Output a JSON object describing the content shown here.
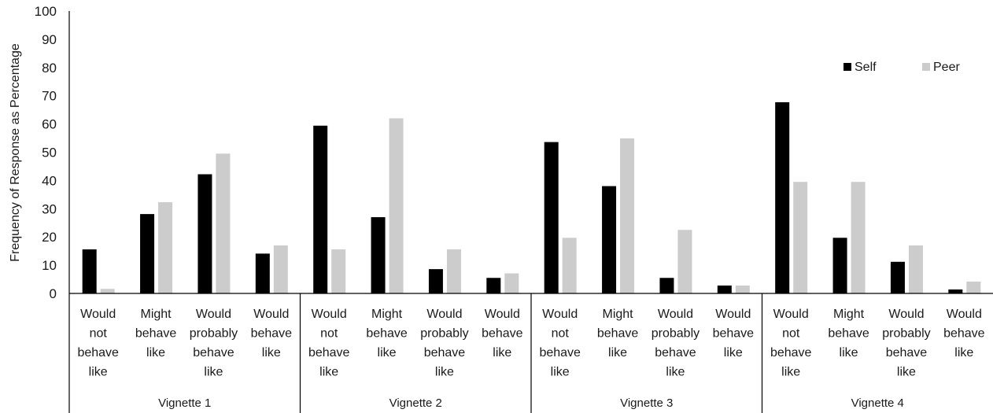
{
  "colors": {
    "self": "#000000",
    "peer": "#cccccc",
    "axis": "#000000",
    "text": "#1a1a1a"
  },
  "chart_data": {
    "type": "bar",
    "ylabel": "Frequency of Response as Percentage",
    "xlabel": "",
    "ylim": [
      0,
      100
    ],
    "yticks": [
      0,
      10,
      20,
      30,
      40,
      50,
      60,
      70,
      80,
      90,
      100
    ],
    "grid": false,
    "legend_position": "top-right",
    "groups": [
      {
        "name": "Vignette 1",
        "categories": [
          [
            "Would",
            "not",
            "behave",
            "like"
          ],
          [
            "Might",
            "behave",
            "like"
          ],
          [
            "Would",
            "probably",
            "behave",
            "like"
          ],
          [
            "Would",
            "behave",
            "like"
          ]
        ]
      },
      {
        "name": "Vignette 2",
        "categories": [
          [
            "Would",
            "not",
            "behave",
            "like"
          ],
          [
            "Might",
            "behave",
            "like"
          ],
          [
            "Would",
            "probably",
            "behave",
            "like"
          ],
          [
            "Would",
            "behave",
            "like"
          ]
        ]
      },
      {
        "name": "Vignette 3",
        "categories": [
          [
            "Would",
            "not",
            "behave",
            "like"
          ],
          [
            "Might",
            "behave",
            "like"
          ],
          [
            "Would",
            "probably",
            "behave",
            "like"
          ],
          [
            "Would",
            "behave",
            "like"
          ]
        ]
      },
      {
        "name": "Vignette 4",
        "categories": [
          [
            "Would",
            "not",
            "behave",
            "like"
          ],
          [
            "Might",
            "behave",
            "like"
          ],
          [
            "Would",
            "probably",
            "behave",
            "like"
          ],
          [
            "Would",
            "behave",
            "like"
          ]
        ]
      }
    ],
    "series": [
      {
        "name": "Self",
        "values": [
          15.6,
          28.1,
          42.2,
          14.1,
          59.4,
          27.0,
          8.6,
          5.5,
          53.6,
          38.0,
          5.5,
          2.8,
          67.7,
          19.7,
          11.2,
          1.4
        ]
      },
      {
        "name": "Peer",
        "values": [
          1.6,
          32.3,
          49.5,
          17.0,
          15.6,
          62.0,
          15.6,
          7.1,
          19.7,
          54.9,
          22.5,
          2.8,
          39.5,
          39.5,
          17.0,
          4.2
        ]
      }
    ]
  }
}
